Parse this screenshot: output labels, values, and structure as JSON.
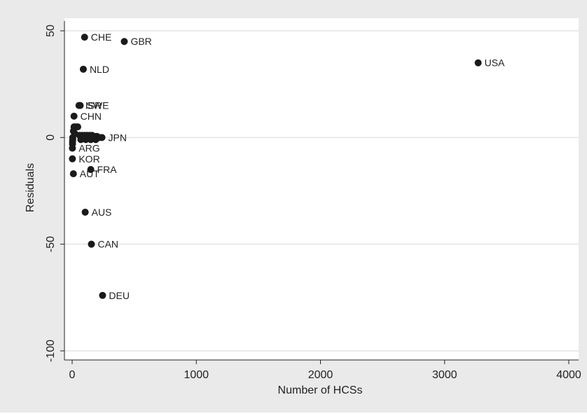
{
  "colors": {
    "outer_background": "#eaeaea",
    "plot_background": "#ffffff",
    "gridline": "#e4e4e4",
    "marker": "#1a1a1a",
    "text": "#222222"
  },
  "chart_data": {
    "type": "scatter",
    "title": "",
    "xlabel": "Number of HCSs",
    "ylabel": "Residuals",
    "xlim": [
      0,
      4000
    ],
    "ylim": [
      -100,
      50
    ],
    "xticks": [
      0,
      1000,
      2000,
      3000,
      4000
    ],
    "yticks": [
      -100,
      -50,
      0,
      50
    ],
    "xtick_labels": [
      "0",
      "1000",
      "2000",
      "3000",
      "4000"
    ],
    "ytick_labels": [
      "-100",
      "-50",
      "0",
      "50"
    ],
    "grid": "horizontal",
    "points": [
      {
        "label": "CHE",
        "x": 100,
        "y": 47
      },
      {
        "label": "GBR",
        "x": 420,
        "y": 45
      },
      {
        "label": "USA",
        "x": 3270,
        "y": 35
      },
      {
        "label": "NLD",
        "x": 90,
        "y": 32
      },
      {
        "label": "ISR",
        "x": 55,
        "y": 15
      },
      {
        "label": "SWE",
        "x": 65,
        "y": 15
      },
      {
        "label": "CHN",
        "x": 15,
        "y": 10
      },
      {
        "label": "",
        "x": 15,
        "y": 5
      },
      {
        "label": "",
        "x": 30,
        "y": 5
      },
      {
        "label": "",
        "x": 45,
        "y": 5
      },
      {
        "label": "",
        "x": 10,
        "y": 3
      },
      {
        "label": "",
        "x": 20,
        "y": 2
      },
      {
        "label": "",
        "x": 60,
        "y": 1
      },
      {
        "label": "",
        "x": 80,
        "y": 1
      },
      {
        "label": "",
        "x": 100,
        "y": 1
      },
      {
        "label": "",
        "x": 120,
        "y": 1
      },
      {
        "label": "",
        "x": 140,
        "y": 1
      },
      {
        "label": "",
        "x": 160,
        "y": 1
      },
      {
        "label": "",
        "x": 180,
        "y": 0.5
      },
      {
        "label": "",
        "x": 200,
        "y": 0.5
      },
      {
        "label": "",
        "x": 220,
        "y": 0
      },
      {
        "label": "JPN",
        "x": 240,
        "y": 0
      },
      {
        "label": "",
        "x": 5,
        "y": 0
      },
      {
        "label": "",
        "x": 5,
        "y": -1
      },
      {
        "label": "",
        "x": 70,
        "y": -1
      },
      {
        "label": "",
        "x": 110,
        "y": -1
      },
      {
        "label": "",
        "x": 150,
        "y": -1
      },
      {
        "label": "",
        "x": 190,
        "y": -1
      },
      {
        "label": "",
        "x": 3,
        "y": -2
      },
      {
        "label": "",
        "x": 3,
        "y": -3
      },
      {
        "label": "ARG",
        "x": 2,
        "y": -5
      },
      {
        "label": "KOR",
        "x": 2,
        "y": -10
      },
      {
        "label": "FRA",
        "x": 150,
        "y": -15
      },
      {
        "label": "AUT",
        "x": 10,
        "y": -17
      },
      {
        "label": "AUS",
        "x": 105,
        "y": -35
      },
      {
        "label": "CAN",
        "x": 155,
        "y": -50
      },
      {
        "label": "DEU",
        "x": 245,
        "y": -74
      }
    ]
  }
}
